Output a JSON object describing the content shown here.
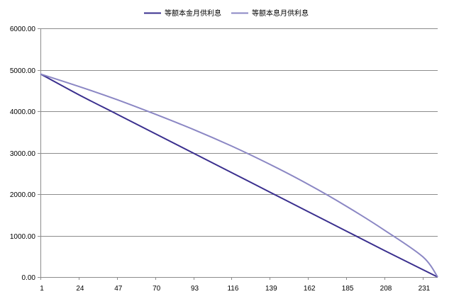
{
  "chart_data": {
    "type": "line",
    "title": "",
    "xlabel": "",
    "ylabel": "",
    "x_range": [
      1,
      240
    ],
    "ylim": [
      0,
      6000
    ],
    "y_ticks": [
      "0.00",
      "1000.00",
      "2000.00",
      "3000.00",
      "4000.00",
      "5000.00",
      "6000.00"
    ],
    "x_ticks": [
      "1",
      "24",
      "47",
      "70",
      "93",
      "116",
      "139",
      "162",
      "185",
      "208",
      "231"
    ],
    "grid": true,
    "legend_position": "top",
    "series": [
      {
        "name": "等额本金月供利息",
        "color": "#3a2f8e",
        "x": [
          1,
          24,
          47,
          70,
          93,
          116,
          139,
          162,
          185,
          208,
          231,
          240
        ],
        "y": [
          4900,
          4400,
          3930,
          3460,
          2990,
          2520,
          2050,
          1580,
          1110,
          640,
          180,
          0
        ]
      },
      {
        "name": "等额本息月供利息",
        "color": "#8b87c4",
        "x": [
          1,
          24,
          47,
          70,
          93,
          116,
          139,
          162,
          185,
          208,
          231,
          240
        ],
        "y": [
          4900,
          4600,
          4280,
          3930,
          3560,
          3160,
          2720,
          2240,
          1710,
          1130,
          490,
          0
        ]
      }
    ]
  }
}
